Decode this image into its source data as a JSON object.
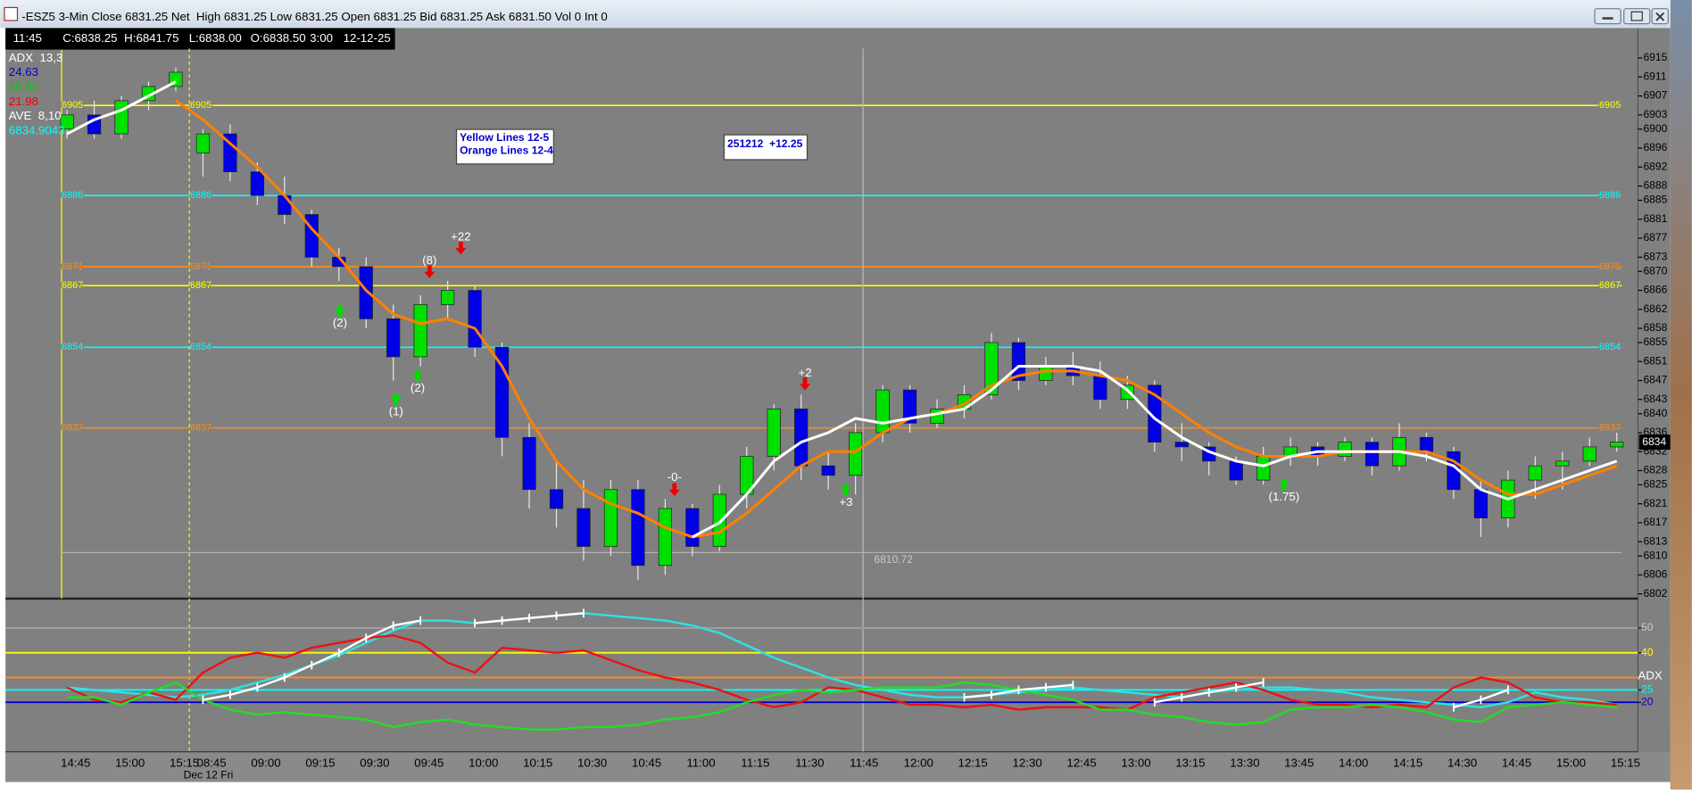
{
  "window": {
    "title": "-ESZ5 3-Min Close 6831.25 Net  High 6831.25 Low 6831.25 Open 6831.25 Bid 6831.25 Ask 6831.50 Vol 0 Int 0"
  },
  "info_bar": [
    "11:45",
    "C:6838.25",
    "H:6841.75",
    "L:6838.00",
    "O:6838.50",
    "3:00",
    "12-12-25"
  ],
  "chart_data": [
    {
      "type": "candlestick",
      "categories": [
        "14:45",
        null,
        "15:00",
        null,
        "15:15",
        "08:45",
        null,
        "09:00",
        null,
        "09:15",
        null,
        "09:30",
        null,
        "09:45",
        null,
        "10:00",
        null,
        "10:15",
        null,
        "10:30",
        null,
        "10:45",
        null,
        "11:00",
        null,
        "11:15",
        null,
        "11:30",
        null,
        "11:45",
        null,
        "12:00",
        null,
        "12:15",
        null,
        "12:30",
        null,
        "12:45",
        null,
        "13:00",
        null,
        "13:15",
        null,
        "13:30",
        null,
        "13:45",
        null,
        "14:00",
        null,
        "14:15",
        null,
        "14:30",
        null,
        "14:45",
        null,
        "15:00",
        null,
        "15:15"
      ],
      "date_label": "Dec 12 Fri",
      "open": [
        6900,
        6903,
        6899,
        6906,
        6909,
        6895,
        6899,
        6891,
        6886,
        6882,
        6873,
        6871,
        6860,
        6852,
        6863,
        6866,
        6854,
        6835,
        6824,
        6820,
        6812,
        6824,
        6808,
        6820,
        6812,
        6823,
        6831,
        6841,
        6829,
        6827,
        6836,
        6845,
        6838,
        6841,
        6844,
        6855,
        6847,
        6850,
        6848,
        6843,
        6846,
        6834,
        6833,
        6830,
        6826,
        6831,
        6833,
        6831,
        6834,
        6829,
        6835,
        6832,
        6824,
        6818,
        6826,
        6829,
        6830,
        6833
      ],
      "high": [
        6904,
        6906,
        6907,
        6910,
        6913,
        6900,
        6901,
        6893,
        6890,
        6883,
        6875,
        6873,
        6863,
        6865,
        6868,
        6867,
        6855,
        6838,
        6830,
        6826,
        6826,
        6826,
        6822,
        6821,
        6825,
        6833,
        6842,
        6844,
        6832,
        6838,
        6846,
        6846,
        6843,
        6846,
        6857,
        6856,
        6852,
        6853,
        6851,
        6848,
        6847,
        6838,
        6834,
        6831,
        6833,
        6835,
        6834,
        6835,
        6835,
        6838,
        6836,
        6833,
        6826,
        6828,
        6831,
        6832,
        6835,
        6836
      ],
      "low": [
        6898,
        6898,
        6898,
        6904,
        6908,
        6890,
        6889,
        6884,
        6880,
        6871,
        6868,
        6858,
        6847,
        6850,
        6860,
        6852,
        6831,
        6820,
        6816,
        6809,
        6810,
        6805,
        6806,
        6810,
        6811,
        6820,
        6828,
        6826,
        6824,
        6823,
        6834,
        6836,
        6837,
        6839,
        6843,
        6845,
        6846,
        6846,
        6841,
        6841,
        6832,
        6830,
        6827,
        6825,
        6825,
        6829,
        6829,
        6830,
        6827,
        6828,
        6830,
        6822,
        6814,
        6816,
        6822,
        6824,
        6829,
        6832
      ],
      "close": [
        6903,
        6899,
        6906,
        6909,
        6912,
        6899,
        6891,
        6886,
        6882,
        6873,
        6871,
        6860,
        6852,
        6863,
        6866,
        6854,
        6835,
        6824,
        6820,
        6812,
        6824,
        6808,
        6820,
        6812,
        6823,
        6831,
        6841,
        6829,
        6827,
        6836,
        6845,
        6838,
        6841,
        6844,
        6855,
        6847,
        6850,
        6848,
        6843,
        6846,
        6834,
        6833,
        6830,
        6826,
        6831,
        6833,
        6831,
        6834,
        6829,
        6835,
        6832,
        6824,
        6818,
        6826,
        6829,
        6830,
        6833,
        6834
      ],
      "up_color": "#00e000",
      "down_color": "#0000e6",
      "series": [
        {
          "color": "#ff8000",
          "values": [
            null,
            null,
            null,
            null,
            6906,
            6902,
            6897,
            6892,
            6886,
            6879,
            6873,
            6866,
            6861,
            6859,
            6860,
            6858,
            6850,
            6839,
            6830,
            6824,
            6821,
            6819,
            6816,
            6814,
            6815,
            6819,
            6824,
            6829,
            6832,
            6832,
            6836,
            6839,
            6840,
            6842,
            6846,
            6848,
            6849,
            6849,
            6848,
            6847,
            6844,
            6840,
            6836,
            6833,
            6831,
            6831,
            6831,
            6832,
            6832,
            6832,
            6832,
            6830,
            6826,
            6823,
            6823,
            6825,
            6827,
            6829
          ]
        },
        {
          "color": "#ffffff",
          "values": [
            6899,
            6902,
            6904,
            6907,
            6910,
            null,
            null,
            null,
            null,
            null,
            null,
            null,
            null,
            null,
            null,
            null,
            null,
            null,
            null,
            null,
            null,
            null,
            null,
            6814,
            6817,
            6823,
            6830,
            6834,
            6836,
            6839,
            6838,
            6839,
            6840,
            6841,
            6845,
            6850,
            6850,
            6850,
            6849,
            6845,
            6839,
            6835,
            6832,
            6830,
            6829,
            6831,
            6832,
            6832,
            6832,
            6832,
            6831,
            6829,
            6824,
            6822,
            6824,
            6826,
            6828,
            6830
          ]
        }
      ],
      "ylim": [
        6801,
        6917
      ],
      "yticks": [
        6915,
        6911,
        6907,
        6903,
        6900,
        6896,
        6892,
        6888,
        6885,
        6881,
        6877,
        6873,
        6870,
        6866,
        6862,
        6858,
        6855,
        6851,
        6847,
        6843,
        6840,
        6836,
        6832,
        6828,
        6825,
        6821,
        6817,
        6813,
        6810,
        6806,
        6802
      ],
      "last_price": 6834,
      "levels": [
        {
          "value": 6905,
          "color": "#ffff00"
        },
        {
          "value": 6886,
          "color": "#00ffff"
        },
        {
          "value": 6871,
          "color": "#ff8c1a"
        },
        {
          "value": 6867,
          "color": "#ffff00"
        },
        {
          "value": 6854,
          "color": "#00ffff"
        },
        {
          "value": 6837,
          "color": "#ff8c1a"
        }
      ],
      "low_line": 6810.72,
      "indicator_legend": [
        {
          "text": "ADX  13,3",
          "color": "#ffffff"
        },
        {
          "text": "24.63",
          "color": "#0000cc"
        },
        {
          "text": "25.50",
          "color": "#00cc00"
        },
        {
          "text": "21.98",
          "color": "#ff0000"
        },
        {
          "text": "AVE  8,10",
          "color": "#ffffff"
        },
        {
          "text": "6834.9043",
          "color": "#00ffff"
        }
      ],
      "notes": [
        "Yellow Lines 12-5",
        "Orange Lines 12-4"
      ],
      "badge": "251212  +12.25",
      "annotations": [
        {
          "text": "(2)",
          "color": "#00dd00",
          "dir": "up"
        },
        {
          "text": "(8)",
          "color": "#ee0000",
          "dir": "down"
        },
        {
          "text": "+22",
          "color": "#ee0000",
          "dir": "down"
        },
        {
          "text": "(1)",
          "color": "#00dd00",
          "dir": "up"
        },
        {
          "text": "(2)",
          "color": "#00dd00",
          "dir": "up"
        },
        {
          "text": "-0-",
          "color": "#ee0000",
          "dir": "down"
        },
        {
          "text": "+2",
          "color": "#ee0000",
          "dir": "down"
        },
        {
          "text": "+3",
          "color": "#00dd00",
          "dir": "up"
        },
        {
          "text": "(1.75)",
          "color": "#00dd00",
          "dir": "up"
        }
      ]
    },
    {
      "type": "line",
      "y_label": "ADX",
      "ylim": [
        0,
        61
      ],
      "yticks": [
        50,
        40,
        25,
        20
      ],
      "levels": [
        {
          "value": 50,
          "color": "#a0a0a0"
        },
        {
          "value": 40,
          "color": "#ffff00"
        },
        {
          "value": 30,
          "color": "#ff8c1a"
        },
        {
          "value": 25,
          "color": "#00ffff"
        },
        {
          "value": 20,
          "color": "#0000cc"
        }
      ],
      "series": [
        {
          "color": "#33e0e0",
          "values": [
            26,
            25,
            24,
            23,
            22,
            23,
            25,
            28,
            31,
            35,
            39,
            44,
            49,
            53,
            53,
            52,
            53,
            54,
            55,
            56,
            55,
            54,
            53,
            51,
            48,
            43,
            38,
            34,
            30,
            27,
            25,
            23,
            22,
            22,
            23,
            24,
            25,
            26,
            25,
            24,
            23,
            22,
            24,
            25,
            26,
            26,
            25,
            24,
            22,
            21,
            20,
            19,
            18,
            20,
            24,
            22,
            21,
            19
          ]
        },
        {
          "color": "#ee1111",
          "values": [
            26,
            21,
            20,
            24,
            21,
            32,
            38,
            40,
            38,
            42,
            44,
            46,
            47,
            44,
            36,
            32,
            42,
            41,
            40,
            41,
            37,
            33,
            30,
            28,
            25,
            21,
            18,
            20,
            26,
            25,
            22,
            19,
            19,
            18,
            19,
            17,
            18,
            18,
            18,
            17,
            22,
            24,
            26,
            28,
            25,
            21,
            19,
            19,
            18,
            19,
            18,
            26,
            30,
            28,
            22,
            20,
            20,
            19
          ]
        },
        {
          "color": "#22dd22",
          "values": [
            22,
            22,
            19,
            24,
            28,
            21,
            17,
            15,
            16,
            15,
            14,
            13,
            10,
            12,
            13,
            11,
            10,
            9,
            9,
            10,
            10,
            11,
            13,
            14,
            16,
            20,
            23,
            25,
            24,
            25,
            26,
            26,
            26,
            28,
            27,
            25,
            23,
            21,
            17,
            17,
            15,
            14,
            12,
            11,
            12,
            17,
            18,
            18,
            19,
            18,
            16,
            13,
            12,
            18,
            19,
            20,
            19,
            18
          ]
        },
        {
          "color": "#ffffff",
          "marker": "plus",
          "values": [
            null,
            null,
            null,
            null,
            null,
            21,
            23,
            26,
            30,
            35,
            40,
            46,
            51,
            53,
            null,
            52,
            53,
            54,
            55,
            56,
            null,
            null,
            null,
            null,
            null,
            null,
            null,
            null,
            null,
            null,
            null,
            null,
            null,
            22,
            23,
            25,
            26,
            27,
            null,
            null,
            20,
            22,
            24,
            26,
            28,
            null,
            null,
            null,
            null,
            null,
            null,
            18,
            21,
            25,
            null,
            null,
            null,
            null
          ]
        }
      ]
    }
  ]
}
